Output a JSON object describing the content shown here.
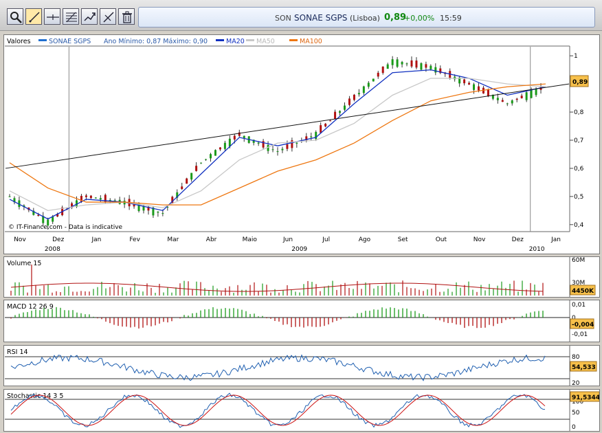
{
  "toolbar": {
    "tools": [
      "zoom-icon",
      "cursor-icon",
      "crosshair-icon",
      "fibonacci-icon",
      "trendline-icon",
      "pencil-icon",
      "trash-icon"
    ]
  },
  "quote": {
    "symbol": "SON",
    "name": "SONAE SGPS",
    "exchange": "(Lisboa)",
    "price": "0,89",
    "change": "+0,00%",
    "time": "15:59"
  },
  "main": {
    "header_values": "Valores",
    "series_name": "SONAE SGPS",
    "minmax": "Ano Mínimo: 0,87  Máximo: 0,90",
    "ma20": "MA20",
    "ma50": "MA50",
    "ma100": "MA100",
    "credit": "© IT-Finance.com - Data is indicative",
    "last_value": "0,89",
    "y_ticks": [
      "1",
      "0,9",
      "0,8",
      "0,7",
      "0,6",
      "0,5",
      "0,4"
    ],
    "x_months": [
      "Nov",
      "Dez",
      "Jan",
      "Fev",
      "Mar",
      "Abr",
      "Maio",
      "Jun",
      "Jul",
      "Ago",
      "Set",
      "Out",
      "Nov",
      "Dez",
      "Jan"
    ],
    "x_years": [
      "2008",
      "2009",
      "2010"
    ]
  },
  "volume": {
    "label": "Volume 15",
    "tick_top": "60M",
    "tick_mid": "30M",
    "last": "4450K"
  },
  "macd": {
    "label": "MACD 12 26 9",
    "ticks": [
      "0,01",
      "0",
      "-0,01"
    ],
    "last": "-0,004"
  },
  "rsi": {
    "label": "RSI 14",
    "ticks": [
      "80",
      "20"
    ],
    "last": "54,533"
  },
  "stoch": {
    "label": "Stochastic 14 3 5",
    "ticks": [
      "100",
      "50",
      "0"
    ],
    "last": "91,5344"
  },
  "colors": {
    "up": "#1a9a1a",
    "down": "#b01010",
    "ma20": "#1030c0",
    "ma50": "#c8c8c8",
    "ma100": "#ee7711",
    "badge": "#f7c04a"
  },
  "chart_data": {
    "type": "line",
    "title": "SONAE SGPS",
    "xlabel": "",
    "ylabel": "Valores",
    "x": [
      "2008-11",
      "2008-12",
      "2009-01",
      "2009-02",
      "2009-03",
      "2009-04",
      "2009-05",
      "2009-06",
      "2009-07",
      "2009-08",
      "2009-09",
      "2009-10",
      "2009-11",
      "2009-12",
      "2010-01"
    ],
    "ylim": [
      0.38,
      1.02
    ],
    "series": [
      {
        "name": "SONAE SGPS",
        "values": [
          0.5,
          0.41,
          0.5,
          0.48,
          0.44,
          0.62,
          0.72,
          0.66,
          0.72,
          0.85,
          0.98,
          0.96,
          0.9,
          0.83,
          0.89
        ]
      },
      {
        "name": "MA20",
        "values": [
          0.49,
          0.42,
          0.49,
          0.48,
          0.45,
          0.58,
          0.71,
          0.68,
          0.71,
          0.83,
          0.94,
          0.95,
          0.92,
          0.86,
          0.89
        ]
      },
      {
        "name": "MA50",
        "values": [
          0.52,
          0.45,
          0.47,
          0.48,
          0.46,
          0.52,
          0.63,
          0.69,
          0.7,
          0.76,
          0.86,
          0.92,
          0.92,
          0.9,
          0.89
        ]
      },
      {
        "name": "MA100",
        "values": [
          0.62,
          0.53,
          0.48,
          0.48,
          0.47,
          0.47,
          0.53,
          0.59,
          0.63,
          0.69,
          0.77,
          0.84,
          0.87,
          0.89,
          0.9
        ]
      }
    ],
    "grid": false
  }
}
